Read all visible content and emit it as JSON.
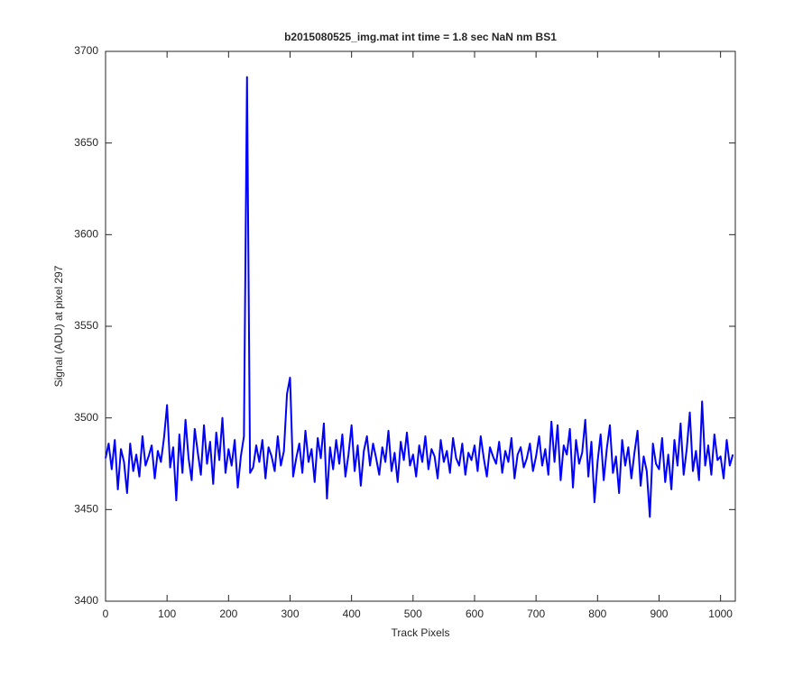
{
  "chart_data": {
    "type": "line",
    "title": "b2015080525_img.mat int time = 1.8 sec  NaN nm BS1",
    "xlabel": "Track Pixels",
    "ylabel": "Signal (ADU) at pixel 297",
    "color": "#0000ff",
    "xlim": [
      0,
      1024
    ],
    "ylim": [
      3400,
      3700
    ],
    "xticks": [
      0,
      100,
      200,
      300,
      400,
      500,
      600,
      700,
      800,
      900,
      1000
    ],
    "yticks": [
      3400,
      3450,
      3500,
      3550,
      3600,
      3650,
      3700
    ],
    "x": [
      0,
      5,
      10,
      15,
      20,
      25,
      30,
      35,
      40,
      45,
      50,
      55,
      60,
      65,
      70,
      75,
      80,
      85,
      90,
      95,
      100,
      105,
      110,
      115,
      120,
      125,
      130,
      135,
      140,
      145,
      150,
      155,
      160,
      165,
      170,
      175,
      180,
      185,
      190,
      195,
      200,
      205,
      210,
      215,
      220,
      225,
      230,
      235,
      240,
      245,
      250,
      255,
      260,
      265,
      270,
      275,
      280,
      285,
      290,
      295,
      300,
      305,
      310,
      315,
      320,
      325,
      330,
      335,
      340,
      345,
      350,
      355,
      360,
      365,
      370,
      375,
      380,
      385,
      390,
      395,
      400,
      405,
      410,
      415,
      420,
      425,
      430,
      435,
      440,
      445,
      450,
      455,
      460,
      465,
      470,
      475,
      480,
      485,
      490,
      495,
      500,
      505,
      510,
      515,
      520,
      525,
      530,
      535,
      540,
      545,
      550,
      555,
      560,
      565,
      570,
      575,
      580,
      585,
      590,
      595,
      600,
      605,
      610,
      615,
      620,
      625,
      630,
      635,
      640,
      645,
      650,
      655,
      660,
      665,
      670,
      675,
      680,
      685,
      690,
      695,
      700,
      705,
      710,
      715,
      720,
      725,
      730,
      735,
      740,
      745,
      750,
      755,
      760,
      765,
      770,
      775,
      780,
      785,
      790,
      795,
      800,
      805,
      810,
      815,
      820,
      825,
      830,
      835,
      840,
      845,
      850,
      855,
      860,
      865,
      870,
      875,
      880,
      885,
      890,
      895,
      900,
      905,
      910,
      915,
      920,
      925,
      930,
      935,
      940,
      945,
      950,
      955,
      960,
      965,
      970,
      975,
      980,
      985,
      990,
      995,
      1000,
      1005,
      1010,
      1015,
      1020
    ],
    "values": [
      3478,
      3486,
      3472,
      3488,
      3461,
      3483,
      3476,
      3459,
      3486,
      3471,
      3480,
      3468,
      3490,
      3474,
      3479,
      3485,
      3467,
      3482,
      3476,
      3489,
      3507,
      3473,
      3484,
      3455,
      3491,
      3470,
      3499,
      3478,
      3466,
      3494,
      3481,
      3469,
      3496,
      3475,
      3487,
      3464,
      3492,
      3477,
      3500,
      3470,
      3483,
      3474,
      3488,
      3462,
      3479,
      3490,
      3686,
      3470,
      3473,
      3485,
      3476,
      3488,
      3467,
      3484,
      3479,
      3471,
      3490,
      3474,
      3482,
      3513,
      3522,
      3468,
      3478,
      3486,
      3470,
      3493,
      3476,
      3483,
      3465,
      3489,
      3478,
      3497,
      3456,
      3484,
      3472,
      3488,
      3475,
      3491,
      3468,
      3480,
      3496,
      3471,
      3485,
      3463,
      3482,
      3490,
      3474,
      3486,
      3478,
      3469,
      3484,
      3476,
      3493,
      3471,
      3481,
      3465,
      3487,
      3477,
      3492,
      3474,
      3480,
      3468,
      3485,
      3476,
      3490,
      3472,
      3483,
      3479,
      3467,
      3488,
      3476,
      3482,
      3470,
      3489,
      3478,
      3474,
      3486,
      3469,
      3481,
      3477,
      3485,
      3471,
      3490,
      3478,
      3468,
      3484,
      3479,
      3475,
      3487,
      3470,
      3482,
      3476,
      3489,
      3467,
      3480,
      3484,
      3473,
      3478,
      3486,
      3471,
      3479,
      3490,
      3474,
      3483,
      3469,
      3498,
      3476,
      3496,
      3466,
      3485,
      3480,
      3494,
      3462,
      3488,
      3475,
      3481,
      3499,
      3468,
      3487,
      3454,
      3476,
      3491,
      3466,
      3483,
      3496,
      3470,
      3479,
      3459,
      3488,
      3474,
      3484,
      3467,
      3481,
      3493,
      3463,
      3479,
      3471,
      3446,
      3486,
      3475,
      3472,
      3489,
      3465,
      3480,
      3461,
      3488,
      3474,
      3497,
      3469,
      3483,
      3503,
      3471,
      3482,
      3466,
      3509,
      3474,
      3485,
      3469,
      3491,
      3477,
      3479,
      3467,
      3488,
      3474,
      3480
    ]
  }
}
